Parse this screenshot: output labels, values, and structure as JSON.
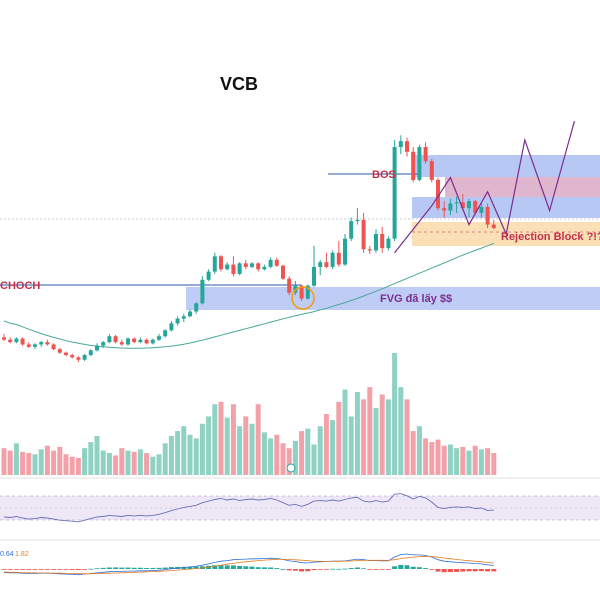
{
  "chart_data": {
    "type": "candlestick",
    "title": "VCB",
    "colors": {
      "up": "#26a69a",
      "down": "#ef5350",
      "vol_up": "#8fd1c3",
      "vol_down": "#f3a1a8",
      "ma": "#4aa89a",
      "projection": "#7b2d8e",
      "annotation_red": "#c0304c",
      "annotation_purple": "#7b2d8e",
      "blue_zone": "#b8c8f5",
      "pink_zone": "#d9a9c4",
      "orange_zone": "#fbe0b6",
      "line_blue": "#2b5aa8",
      "orange_circle": "#f39c12",
      "rsi_band": "#ede7f6",
      "rsi_line": "#6a6fb8",
      "macd_line": "#2f6fd6",
      "signal_line": "#e67e22"
    },
    "price_ylim": [
      0,
      100
    ],
    "candles": [
      {
        "o": 16,
        "h": 17.5,
        "l": 14.5,
        "c": 15
      },
      {
        "o": 15,
        "h": 16,
        "l": 13.5,
        "c": 14
      },
      {
        "o": 14,
        "h": 16,
        "l": 13.5,
        "c": 15.5
      },
      {
        "o": 15.5,
        "h": 16,
        "l": 12.5,
        "c": 13
      },
      {
        "o": 13,
        "h": 14,
        "l": 11.5,
        "c": 12
      },
      {
        "o": 12,
        "h": 13.5,
        "l": 11,
        "c": 13
      },
      {
        "o": 13,
        "h": 14.5,
        "l": 12,
        "c": 14
      },
      {
        "o": 14,
        "h": 15,
        "l": 12.5,
        "c": 13
      },
      {
        "o": 13,
        "h": 13.5,
        "l": 10.5,
        "c": 11
      },
      {
        "o": 11,
        "h": 11.5,
        "l": 9,
        "c": 9.5
      },
      {
        "o": 9.5,
        "h": 10,
        "l": 8,
        "c": 8.5
      },
      {
        "o": 8.5,
        "h": 9,
        "l": 7,
        "c": 7.5
      },
      {
        "o": 7.5,
        "h": 8,
        "l": 5.5,
        "c": 6.5
      },
      {
        "o": 6.5,
        "h": 9,
        "l": 6,
        "c": 8.5
      },
      {
        "o": 8.5,
        "h": 11,
        "l": 8,
        "c": 10.5
      },
      {
        "o": 10.5,
        "h": 13.5,
        "l": 10,
        "c": 12.5
      },
      {
        "o": 12.5,
        "h": 14.5,
        "l": 11.5,
        "c": 14
      },
      {
        "o": 14,
        "h": 17.5,
        "l": 13.5,
        "c": 16.5
      },
      {
        "o": 16.5,
        "h": 17,
        "l": 13.5,
        "c": 14
      },
      {
        "o": 14,
        "h": 15,
        "l": 12.5,
        "c": 13
      },
      {
        "o": 13,
        "h": 16,
        "l": 12.5,
        "c": 15.5
      },
      {
        "o": 15.5,
        "h": 16,
        "l": 13.5,
        "c": 14
      },
      {
        "o": 14,
        "h": 16,
        "l": 13.5,
        "c": 15
      },
      {
        "o": 15,
        "h": 15.5,
        "l": 13,
        "c": 13.5
      },
      {
        "o": 13.5,
        "h": 15.5,
        "l": 13,
        "c": 15
      },
      {
        "o": 15,
        "h": 17.5,
        "l": 14.5,
        "c": 16.5
      },
      {
        "o": 16.5,
        "h": 19.5,
        "l": 16,
        "c": 19
      },
      {
        "o": 19,
        "h": 23,
        "l": 18.5,
        "c": 22
      },
      {
        "o": 22,
        "h": 25,
        "l": 21,
        "c": 24
      },
      {
        "o": 24,
        "h": 26,
        "l": 22.5,
        "c": 25
      },
      {
        "o": 25,
        "h": 28,
        "l": 24.5,
        "c": 27
      },
      {
        "o": 27,
        "h": 31,
        "l": 26,
        "c": 30.5
      },
      {
        "o": 30.5,
        "h": 42,
        "l": 30,
        "c": 40.5
      },
      {
        "o": 40.5,
        "h": 45,
        "l": 40,
        "c": 44
      },
      {
        "o": 44,
        "h": 52,
        "l": 43,
        "c": 50.5
      },
      {
        "o": 50.5,
        "h": 51,
        "l": 44,
        "c": 45
      },
      {
        "o": 45,
        "h": 48,
        "l": 44.5,
        "c": 47
      },
      {
        "o": 47,
        "h": 50.5,
        "l": 42,
        "c": 43
      },
      {
        "o": 43,
        "h": 48,
        "l": 42.5,
        "c": 47.5
      },
      {
        "o": 47.5,
        "h": 49,
        "l": 45,
        "c": 46
      },
      {
        "o": 46,
        "h": 48,
        "l": 45.5,
        "c": 47.5
      },
      {
        "o": 47.5,
        "h": 48,
        "l": 44,
        "c": 45
      },
      {
        "o": 45,
        "h": 47,
        "l": 44.5,
        "c": 46
      },
      {
        "o": 46,
        "h": 50,
        "l": 45.5,
        "c": 49
      },
      {
        "o": 49,
        "h": 50,
        "l": 46,
        "c": 46.5
      },
      {
        "o": 46.5,
        "h": 47,
        "l": 40.5,
        "c": 41
      },
      {
        "o": 41,
        "h": 42,
        "l": 34,
        "c": 35
      },
      {
        "o": 35,
        "h": 40,
        "l": 34,
        "c": 38
      },
      {
        "o": 38,
        "h": 38.5,
        "l": 31.5,
        "c": 32.5
      },
      {
        "o": 32.5,
        "h": 38.5,
        "l": 32,
        "c": 38
      },
      {
        "o": 38,
        "h": 55,
        "l": 37.5,
        "c": 46
      },
      {
        "o": 46,
        "h": 49,
        "l": 42.5,
        "c": 48
      },
      {
        "o": 48,
        "h": 52,
        "l": 45.5,
        "c": 46
      },
      {
        "o": 46,
        "h": 53,
        "l": 45,
        "c": 52
      },
      {
        "o": 52,
        "h": 57,
        "l": 46,
        "c": 47
      },
      {
        "o": 47,
        "h": 60,
        "l": 46.5,
        "c": 58
      },
      {
        "o": 58,
        "h": 67,
        "l": 57,
        "c": 65.5
      },
      {
        "o": 65.5,
        "h": 71,
        "l": 64,
        "c": 66
      },
      {
        "o": 66,
        "h": 69,
        "l": 52,
        "c": 53.5
      },
      {
        "o": 53.5,
        "h": 55,
        "l": 51.5,
        "c": 53
      },
      {
        "o": 53,
        "h": 62,
        "l": 52,
        "c": 60
      },
      {
        "o": 60,
        "h": 63,
        "l": 52,
        "c": 54
      },
      {
        "o": 54,
        "h": 59,
        "l": 53,
        "c": 58
      },
      {
        "o": 58,
        "h": 100,
        "l": 57,
        "c": 97
      },
      {
        "o": 97,
        "h": 102,
        "l": 94,
        "c": 99.5
      },
      {
        "o": 99.5,
        "h": 101,
        "l": 93,
        "c": 95
      },
      {
        "o": 95,
        "h": 97,
        "l": 82,
        "c": 83
      },
      {
        "o": 83,
        "h": 98,
        "l": 82.5,
        "c": 97
      },
      {
        "o": 97,
        "h": 99,
        "l": 90,
        "c": 91
      },
      {
        "o": 91,
        "h": 92,
        "l": 82,
        "c": 83
      },
      {
        "o": 83,
        "h": 84,
        "l": 70,
        "c": 71
      },
      {
        "o": 71,
        "h": 74,
        "l": 67,
        "c": 70
      },
      {
        "o": 70,
        "h": 75,
        "l": 68,
        "c": 73
      },
      {
        "o": 73,
        "h": 76,
        "l": 69,
        "c": 73.5
      },
      {
        "o": 73.5,
        "h": 77,
        "l": 70,
        "c": 71
      },
      {
        "o": 71,
        "h": 75,
        "l": 67,
        "c": 74
      },
      {
        "o": 74,
        "h": 74.5,
        "l": 68,
        "c": 69
      },
      {
        "o": 69,
        "h": 73,
        "l": 67,
        "c": 71.5
      },
      {
        "o": 71.5,
        "h": 73,
        "l": 62.5,
        "c": 64
      },
      {
        "o": 64,
        "h": 66,
        "l": 62,
        "c": 62.5
      }
    ],
    "ma": [
      23,
      22,
      21.5,
      20.5,
      19.5,
      18.5,
      17.6,
      16.8,
      16,
      15.3,
      14.6,
      14,
      13.5,
      13,
      12.6,
      12.3,
      12,
      11.8,
      11.6,
      11.5,
      11.4,
      11.4,
      11.4,
      11.5,
      11.6,
      11.8,
      12,
      12.3,
      12.7,
      13.1,
      13.6,
      14.2,
      14.8,
      15.5,
      16.2,
      16.9,
      17.6,
      18.3,
      19,
      19.7,
      20.4,
      21.1,
      21.8,
      22.5,
      23.2,
      23.9,
      24.6,
      25.2,
      25.8,
      26.4,
      27,
      27.7,
      28.4,
      29.2,
      30,
      30.8,
      31.7,
      32.6,
      33.6,
      34.6,
      35.6,
      36.7,
      37.8,
      38.9,
      40,
      41.1,
      42.2,
      43.3,
      44.4,
      45.5,
      46.6,
      47.7,
      48.8,
      49.9,
      51,
      52,
      53,
      54,
      55,
      56
    ],
    "volume": [
      22,
      20,
      26,
      19,
      18,
      17,
      21,
      24,
      20,
      23,
      17,
      15,
      14,
      22,
      27,
      32,
      20,
      18,
      16,
      22,
      20,
      19,
      21,
      18,
      15,
      17,
      26,
      32,
      36,
      40,
      33,
      30,
      42,
      48,
      58,
      60,
      47,
      58,
      40,
      48,
      42,
      58,
      35,
      30,
      33,
      26,
      22,
      28,
      36,
      38,
      25,
      40,
      50,
      45,
      60,
      70,
      48,
      68,
      62,
      72,
      55,
      66,
      62,
      100,
      72,
      62,
      36,
      40,
      30,
      27,
      29,
      24,
      25,
      22,
      23,
      20,
      24,
      21,
      22,
      18
    ],
    "rsi": [
      34,
      33,
      35,
      32,
      30,
      31,
      33,
      32,
      30,
      28,
      27,
      26,
      25,
      28,
      31,
      34,
      35,
      37,
      36,
      35,
      37,
      36,
      37,
      36,
      37,
      39,
      42,
      46,
      49,
      52,
      54,
      56,
      61,
      64,
      67,
      69,
      66,
      68,
      65,
      67,
      68,
      66,
      67,
      69,
      66,
      61,
      56,
      58,
      54,
      58,
      64,
      65,
      64,
      66,
      64,
      67,
      70,
      71,
      64,
      62,
      65,
      62,
      64,
      77,
      78,
      74,
      68,
      73,
      70,
      62,
      52,
      50,
      52,
      53,
      52,
      53,
      50,
      51,
      46,
      47
    ],
    "macd": [
      -12,
      -13,
      -13,
      -14,
      -15,
      -15,
      -14,
      -14,
      -15,
      -16,
      -17,
      -18,
      -19,
      -17,
      -15,
      -13,
      -11,
      -9,
      -8,
      -8,
      -7,
      -7,
      -6,
      -6,
      -5,
      -4,
      -2,
      1,
      3,
      5,
      7,
      9,
      13,
      17,
      22,
      26,
      28,
      31,
      32,
      33,
      34,
      34,
      35,
      36,
      35,
      32,
      27,
      25,
      21,
      20,
      23,
      24,
      25,
      26,
      26,
      27,
      30,
      33,
      31,
      28,
      28,
      27,
      27,
      40,
      48,
      50,
      47,
      47,
      45,
      40,
      31,
      26,
      24,
      22,
      21,
      20,
      18,
      17,
      14,
      12
    ],
    "signal": [
      -10,
      -11,
      -11,
      -12,
      -12.5,
      -13,
      -13.2,
      -13.4,
      -13.6,
      -14,
      -14.5,
      -15,
      -15.6,
      -15.9,
      -15.8,
      -15.4,
      -14.8,
      -14,
      -13.3,
      -12.6,
      -11.8,
      -11,
      -10.2,
      -9.4,
      -8.6,
      -7.8,
      -6.8,
      -5.4,
      -3.8,
      -2.1,
      -0.3,
      1.6,
      3.8,
      6.4,
      9.5,
      12.8,
      16,
      19,
      22,
      24,
      26,
      28,
      29.5,
      31,
      32,
      32,
      31.5,
      30.6,
      29.3,
      27.6,
      26.4,
      25.8,
      25.4,
      25.5,
      25.6,
      25.9,
      26.7,
      28,
      28.7,
      28.9,
      29,
      28.9,
      28.7,
      31,
      34.5,
      37.5,
      39.5,
      41,
      41.9,
      41.5,
      39.4,
      36.7,
      34.2,
      31.8,
      29.6,
      27.7,
      25.8,
      24,
      22.1,
      20.1
    ],
    "macd_legend_values": [
      "0.64",
      "1.82"
    ],
    "annotations": {
      "choch": "CHOCH",
      "bos": "BOS",
      "fvg": "FVG đã lấy $$",
      "rejection": "Rejection Block ?!?"
    },
    "projection_path": [
      [
        63,
        52
      ],
      [
        69,
        72
      ],
      [
        72,
        84
      ],
      [
        75,
        64
      ],
      [
        78,
        78
      ],
      [
        81,
        60
      ],
      [
        84,
        100
      ],
      [
        88,
        70
      ],
      [
        92,
        108
      ]
    ]
  }
}
